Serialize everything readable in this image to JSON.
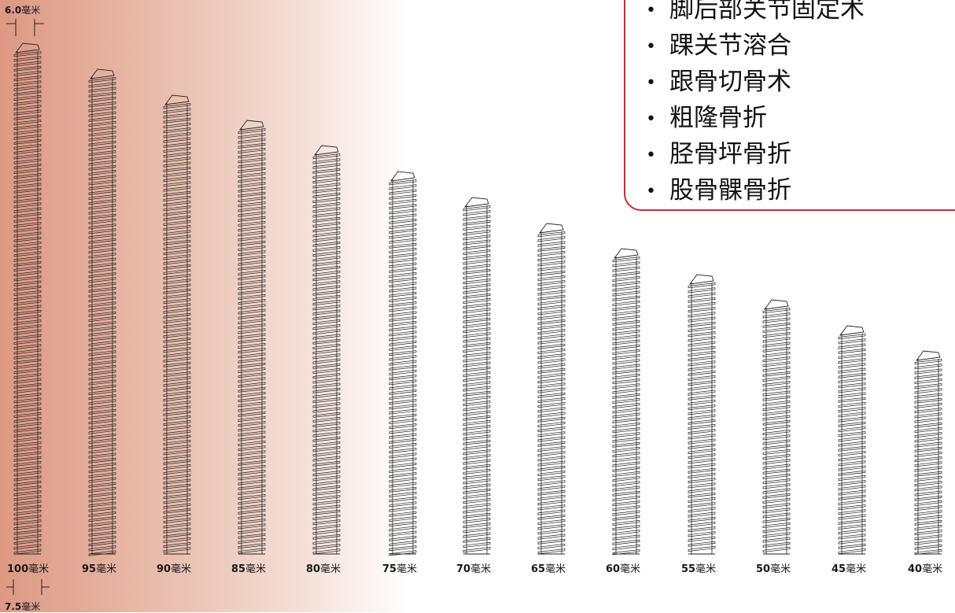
{
  "indications": [
    "脚后部关节固定术",
    "踝关节溶合",
    "跟骨切骨术",
    "粗隆骨折",
    "胫骨坪骨折",
    "股骨髁骨折"
  ],
  "screws": [
    {
      "num": "100",
      "unit": "毫米"
    },
    {
      "num": "95",
      "unit": "毫米"
    },
    {
      "num": "90",
      "unit": "毫米"
    },
    {
      "num": "85",
      "unit": "毫米"
    },
    {
      "num": "80",
      "unit": "毫米"
    },
    {
      "num": "75",
      "unit": "毫米"
    },
    {
      "num": "70",
      "unit": "毫米"
    },
    {
      "num": "65",
      "unit": "毫米"
    },
    {
      "num": "60",
      "unit": "毫米"
    },
    {
      "num": "55",
      "unit": "毫米"
    },
    {
      "num": "50",
      "unit": "毫米"
    },
    {
      "num": "45",
      "unit": "毫米"
    },
    {
      "num": "40",
      "unit": "毫米"
    }
  ],
  "dims": {
    "top_num": "6.0",
    "top_unit": "毫米",
    "bottom_num": "7.5",
    "bottom_unit": "毫米"
  },
  "colors": {
    "gradient_start": "#dd9983",
    "border_accent": "#c0323a"
  }
}
